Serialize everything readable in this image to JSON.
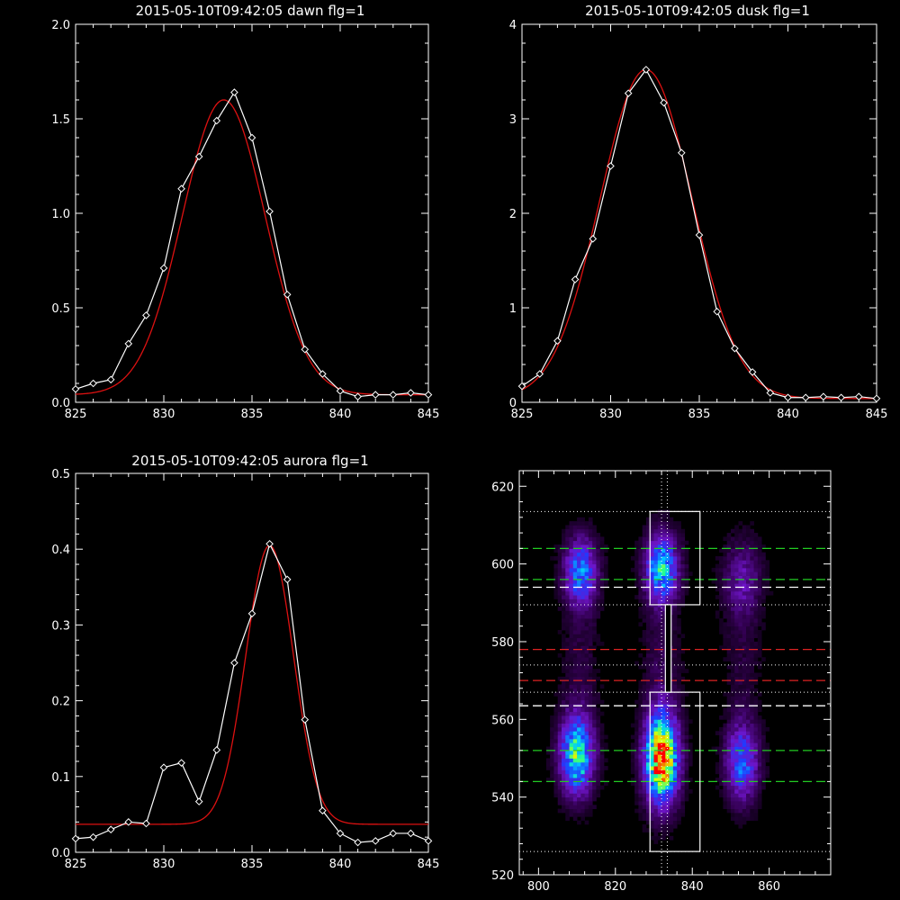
{
  "colors": {
    "background": "#000000",
    "axes": "#ffffff",
    "data_line": "#ffffff",
    "fit_line": "#dd1111",
    "guide_green": "#22cc22",
    "guide_red": "#dd2222",
    "guide_white": "#ffffff"
  },
  "chart_data": [
    {
      "id": "dawn",
      "type": "line",
      "title": "2015-05-10T09:42:05 dawn flg=1",
      "xlabel": "",
      "ylabel": "",
      "xlim": [
        825,
        845
      ],
      "ylim": [
        0,
        2.0
      ],
      "xticks": [
        "825",
        "830",
        "835",
        "840",
        "845"
      ],
      "yticks": [
        "0.0",
        "0.5",
        "1.0",
        "1.5",
        "2.0"
      ],
      "series": [
        {
          "style": "data",
          "marker": "diamond",
          "x": [
            825,
            826,
            827,
            828,
            829,
            830,
            831,
            832,
            833,
            834,
            835,
            836,
            837,
            838,
            839,
            840,
            841,
            842,
            843,
            844,
            845
          ],
          "values": [
            0.07,
            0.1,
            0.12,
            0.31,
            0.46,
            0.71,
            1.13,
            1.3,
            1.49,
            1.64,
            1.4,
            1.01,
            0.57,
            0.28,
            0.15,
            0.06,
            0.03,
            0.04,
            0.04,
            0.05,
            0.04
          ]
        },
        {
          "style": "fit",
          "gaussian": {
            "amp": 1.56,
            "center": 833.4,
            "sigma": 2.35,
            "offset": 0.04
          }
        }
      ]
    },
    {
      "id": "dusk",
      "type": "line",
      "title": "2015-05-10T09:42:05 dusk flg=1",
      "xlabel": "",
      "ylabel": "",
      "xlim": [
        825,
        845
      ],
      "ylim": [
        0,
        4
      ],
      "xticks": [
        "825",
        "830",
        "835",
        "840",
        "845"
      ],
      "yticks": [
        "0",
        "1",
        "2",
        "3",
        "4"
      ],
      "series": [
        {
          "style": "data",
          "marker": "diamond",
          "x": [
            825,
            826,
            827,
            828,
            829,
            830,
            831,
            832,
            833,
            834,
            835,
            836,
            837,
            838,
            839,
            840,
            841,
            842,
            843,
            844,
            845
          ],
          "values": [
            0.17,
            0.3,
            0.65,
            1.3,
            1.73,
            2.5,
            3.27,
            3.52,
            3.17,
            2.64,
            1.77,
            0.96,
            0.57,
            0.32,
            0.1,
            0.05,
            0.05,
            0.06,
            0.05,
            0.06,
            0.04
          ]
        },
        {
          "style": "fit",
          "gaussian": {
            "amp": 3.48,
            "center": 832.0,
            "sigma": 2.6,
            "offset": 0.04
          }
        }
      ]
    },
    {
      "id": "aurora",
      "type": "line",
      "title": "2015-05-10T09:42:05 aurora flg=1",
      "xlabel": "",
      "ylabel": "",
      "xlim": [
        825,
        845
      ],
      "ylim": [
        0,
        0.5
      ],
      "xticks": [
        "825",
        "830",
        "835",
        "840",
        "845"
      ],
      "yticks": [
        "0.0",
        "0.1",
        "0.2",
        "0.3",
        "0.4",
        "0.5"
      ],
      "series": [
        {
          "style": "data",
          "marker": "diamond",
          "x": [
            825,
            826,
            827,
            828,
            829,
            830,
            831,
            832,
            833,
            834,
            835,
            836,
            837,
            838,
            839,
            840,
            841,
            842,
            843,
            844,
            845
          ],
          "values": [
            0.018,
            0.02,
            0.03,
            0.04,
            0.038,
            0.112,
            0.118,
            0.067,
            0.135,
            0.25,
            0.315,
            0.407,
            0.36,
            0.175,
            0.055,
            0.025,
            0.013,
            0.015,
            0.025,
            0.025,
            0.015
          ]
        },
        {
          "style": "fit",
          "gaussian": {
            "amp": 0.368,
            "center": 836.0,
            "sigma": 1.35,
            "offset": 0.037
          }
        }
      ]
    },
    {
      "id": "image",
      "type": "heatmap",
      "title": "",
      "xlabel": "",
      "ylabel": "",
      "xlim": [
        795,
        876
      ],
      "ylim": [
        520,
        624
      ],
      "xticks": [
        "800",
        "820",
        "840",
        "860"
      ],
      "yticks": [
        "520",
        "540",
        "560",
        "580",
        "600",
        "620"
      ],
      "blobs": [
        {
          "x": 811,
          "y": 598,
          "sx": 3.0,
          "sy": 6,
          "amp": 0.5
        },
        {
          "x": 832,
          "y": 599,
          "sx": 3.0,
          "sy": 6,
          "amp": 0.6
        },
        {
          "x": 853,
          "y": 596,
          "sx": 3.5,
          "sy": 7,
          "amp": 0.22
        },
        {
          "x": 810,
          "y": 551,
          "sx": 3.0,
          "sy": 7,
          "amp": 0.7
        },
        {
          "x": 832,
          "y": 550,
          "sx": 3.0,
          "sy": 8,
          "amp": 1.0
        },
        {
          "x": 853,
          "y": 549,
          "sx": 3.0,
          "sy": 7,
          "amp": 0.45
        },
        {
          "x": 811,
          "y": 575,
          "sx": 3.5,
          "sy": 12,
          "amp": 0.08
        },
        {
          "x": 832,
          "y": 575,
          "sx": 3.5,
          "sy": 12,
          "amp": 0.1
        },
        {
          "x": 853,
          "y": 575,
          "sx": 3.5,
          "sy": 12,
          "amp": 0.07
        }
      ],
      "hlines": [
        {
          "y": 604,
          "style": "dashed",
          "color": "green"
        },
        {
          "y": 596,
          "style": "dashed",
          "color": "green"
        },
        {
          "y": 594,
          "style": "dashed",
          "color": "white"
        },
        {
          "y": 578,
          "style": "dashed",
          "color": "red"
        },
        {
          "y": 570,
          "style": "dashed",
          "color": "red"
        },
        {
          "y": 563.5,
          "style": "dashed",
          "color": "white"
        },
        {
          "y": 552,
          "style": "dashed",
          "color": "green"
        },
        {
          "y": 544,
          "style": "dashed",
          "color": "green"
        },
        {
          "y": 613.5,
          "style": "dotted",
          "color": "white"
        },
        {
          "y": 589.5,
          "style": "dotted",
          "color": "white"
        },
        {
          "y": 574,
          "style": "dotted",
          "color": "white"
        },
        {
          "y": 567,
          "style": "dotted",
          "color": "white"
        },
        {
          "y": 526,
          "style": "dotted",
          "color": "white"
        }
      ],
      "vlines": [
        {
          "x": 832,
          "style": "dotted",
          "color": "white"
        },
        {
          "x": 833.5,
          "style": "dotted",
          "color": "white"
        }
      ],
      "boxes": [
        {
          "x0": 829,
          "x1": 842,
          "y0": 589.5,
          "y1": 613.5
        },
        {
          "x0": 829,
          "x1": 842,
          "y0": 526,
          "y1": 567
        }
      ],
      "connector": {
        "x0": 833,
        "x1": 834.5,
        "y0": 567,
        "y1": 589.5
      }
    }
  ]
}
